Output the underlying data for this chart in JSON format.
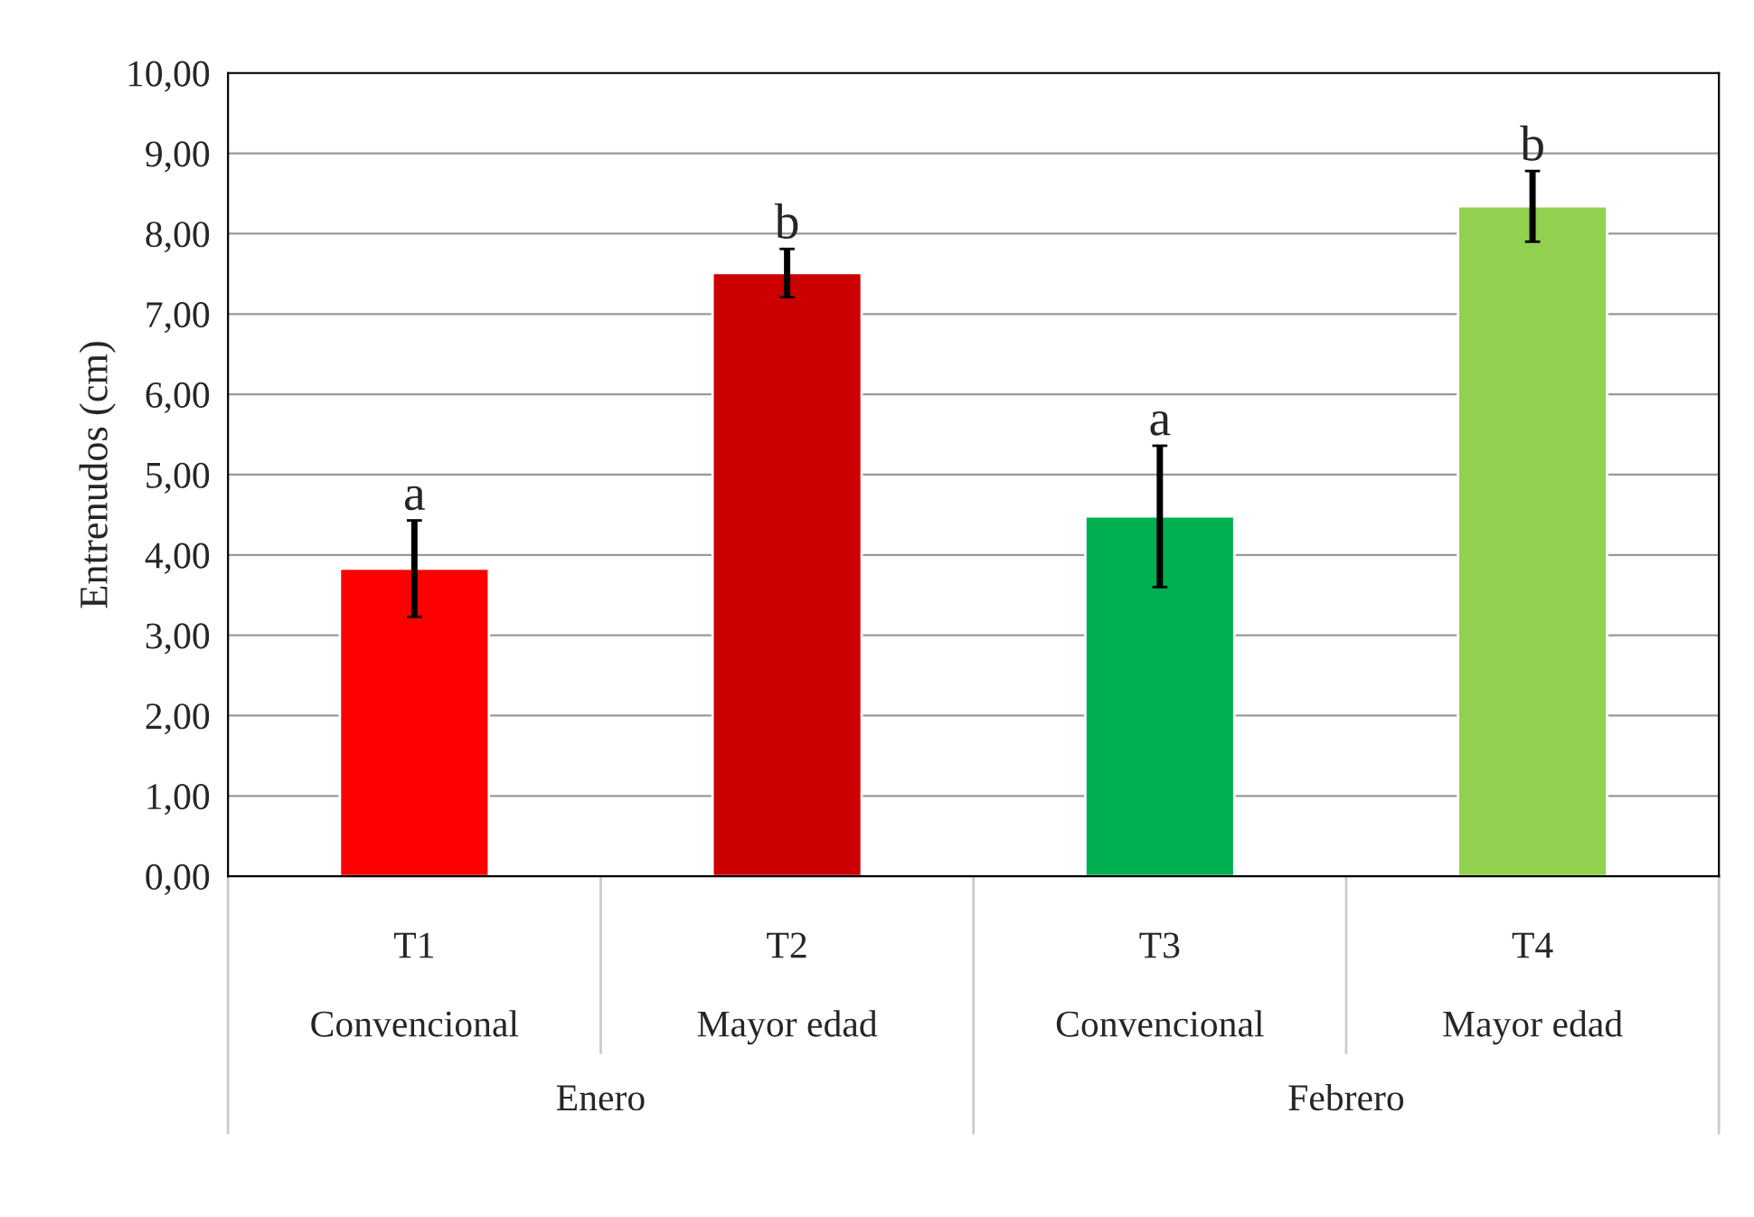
{
  "chart_data": {
    "type": "bar",
    "ylabel": "Entrenudos (cm)",
    "categories": [
      "T1\n\nConvencional",
      "T2\n\nMayor edad",
      "T3\n\nConvencional",
      "T4\n\nMayor edad"
    ],
    "values": [
      3.83,
      7.51,
      4.48,
      8.34
    ],
    "errors": [
      0.6,
      0.3,
      0.88,
      0.44
    ],
    "colors": [
      "#ff0000",
      "#cc0000",
      "#00b050",
      "#92d050"
    ],
    "ylim": [
      0,
      10
    ],
    "yticks": [
      {
        "value": 0,
        "label": "0,00"
      },
      {
        "value": 1,
        "label": "1,00"
      },
      {
        "value": 2,
        "label": "2,00"
      },
      {
        "value": 3,
        "label": "3,00"
      },
      {
        "value": 4,
        "label": "4,00"
      },
      {
        "value": 5,
        "label": "5,00"
      },
      {
        "value": 6,
        "label": "6,00"
      },
      {
        "value": 7,
        "label": "7,00"
      },
      {
        "value": 8,
        "label": "8,00"
      },
      {
        "value": 9,
        "label": "9,00"
      },
      {
        "value": 10,
        "label": "10,00"
      }
    ],
    "grid": "y",
    "annotations": [
      "a",
      "b",
      "a",
      "b",
      "Enero",
      "Febrero"
    ]
  }
}
